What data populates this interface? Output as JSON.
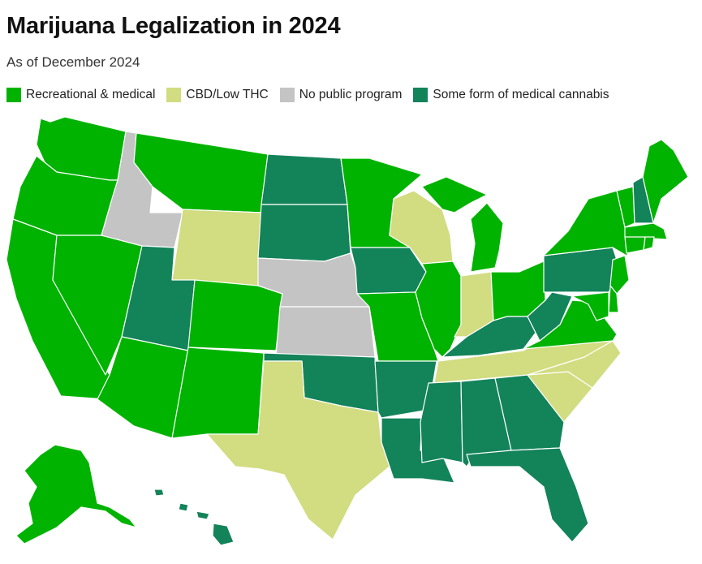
{
  "title": "Marijuana Legalization in 2024",
  "subtitle": "As of December 2024",
  "colors": {
    "recreational": "#00b300",
    "cbd": "#d2dc80",
    "none": "#c4c4c4",
    "medical": "#13835a"
  },
  "legend": [
    {
      "label": "Recreational & medical",
      "category": "recreational"
    },
    {
      "label": "CBD/Low THC",
      "category": "cbd"
    },
    {
      "label": "No public program",
      "category": "none"
    },
    {
      "label": "Some form of medical cannabis",
      "category": "medical"
    }
  ],
  "states": {
    "WA": "recreational",
    "OR": "recreational",
    "CA": "recreational",
    "NV": "recreational",
    "ID": "none",
    "MT": "recreational",
    "WY": "cbd",
    "UT": "medical",
    "AZ": "recreational",
    "CO": "recreational",
    "NM": "recreational",
    "ND": "medical",
    "SD": "medical",
    "NE": "none",
    "KS": "none",
    "OK": "medical",
    "TX": "cbd",
    "MN": "recreational",
    "IA": "medical",
    "MO": "recreational",
    "AR": "medical",
    "LA": "medical",
    "WI": "cbd",
    "IL": "recreational",
    "MI": "recreational",
    "IN": "cbd",
    "OH": "recreational",
    "KY": "medical",
    "TN": "cbd",
    "MS": "medical",
    "AL": "medical",
    "GA": "medical",
    "FL": "medical",
    "SC": "cbd",
    "NC": "cbd",
    "VA": "recreational",
    "WV": "medical",
    "PA": "medical",
    "NY": "recreational",
    "VT": "recreational",
    "NH": "medical",
    "ME": "recreational",
    "MA": "recreational",
    "CT": "recreational",
    "RI": "recreational",
    "NJ": "recreational",
    "DE": "recreational",
    "MD": "recreational",
    "AK": "recreational",
    "HI": "medical"
  }
}
